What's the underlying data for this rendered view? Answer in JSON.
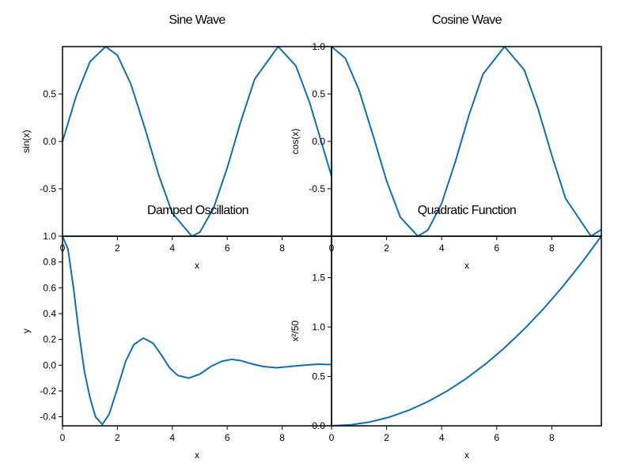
{
  "chart_data": [
    {
      "type": "line",
      "title": "Sine Wave",
      "xlabel": "x",
      "ylabel": "sin(x)",
      "xlim": [
        0,
        9.8
      ],
      "ylim": [
        -1,
        1
      ],
      "xticks": [
        0,
        2,
        4,
        6,
        8
      ],
      "yticks": [
        -0.5,
        0.0,
        0.5
      ],
      "xtick_labels": [
        "0",
        "2",
        "4",
        "6",
        "8"
      ],
      "ytick_labels": [
        "-0.5",
        "0.0",
        "0.5"
      ],
      "grid": false,
      "color": "#0f6fb0",
      "series": [
        {
          "x": [
            0,
            0.5,
            1,
            1.5708,
            2,
            2.5,
            3,
            3.5,
            4,
            4.7124,
            5,
            5.5,
            6,
            6.5,
            7,
            7.854,
            8.5,
            9,
            9.5,
            9.8
          ],
          "y": [
            0,
            0.479,
            0.841,
            1.0,
            0.909,
            0.598,
            0.141,
            -0.351,
            -0.757,
            -1.0,
            -0.959,
            -0.706,
            -0.279,
            0.215,
            0.657,
            1.0,
            0.798,
            0.412,
            -0.075,
            -0.366
          ]
        }
      ]
    },
    {
      "type": "line",
      "title": "Cosine Wave",
      "xlabel": "x",
      "ylabel": "cos(x)",
      "xlim": [
        0,
        9.8
      ],
      "ylim": [
        -1,
        1
      ],
      "xticks": [
        0,
        2,
        4,
        6,
        8
      ],
      "yticks": [
        -0.5,
        0.0,
        0.5,
        1.0
      ],
      "xtick_labels": [
        "0",
        "2",
        "4",
        "6",
        "8"
      ],
      "ytick_labels": [
        "-0.5",
        "0.0",
        "0.5",
        "1.0"
      ],
      "grid": false,
      "color": "#0f6fb0",
      "series": [
        {
          "x": [
            0,
            0.5,
            1,
            1.5,
            2,
            2.5,
            3.1416,
            3.5,
            4,
            4.5,
            5,
            5.5,
            6.2832,
            7,
            7.5,
            8,
            8.5,
            9.4248,
            9.8
          ],
          "y": [
            1.0,
            0.878,
            0.54,
            0.071,
            -0.416,
            -0.801,
            -1.0,
            -0.936,
            -0.654,
            -0.211,
            0.284,
            0.709,
            1.0,
            0.754,
            0.347,
            -0.146,
            -0.602,
            -1.0,
            -0.93
          ]
        }
      ]
    },
    {
      "type": "line",
      "title": "Damped Oscillation",
      "xlabel": "x",
      "ylabel": "y",
      "xlim": [
        0,
        9.8
      ],
      "ylim": [
        -0.47,
        1.0
      ],
      "xticks": [
        0,
        2,
        4,
        6,
        8
      ],
      "yticks": [
        -0.4,
        -0.2,
        0.0,
        0.2,
        0.4,
        0.6,
        0.8,
        1.0
      ],
      "xtick_labels": [
        "0",
        "2",
        "4",
        "6",
        "8"
      ],
      "ytick_labels": [
        "-0.4",
        "-0.2",
        "0.0",
        "0.2",
        "0.4",
        "0.6",
        "0.8",
        "1.0"
      ],
      "grid": false,
      "color": "#0f6fb0",
      "series": [
        {
          "x": [
            0,
            0.2,
            0.4,
            0.6,
            0.8,
            1.0,
            1.2,
            1.45,
            1.7,
            2.0,
            2.3,
            2.6,
            2.95,
            3.3,
            3.6,
            3.9,
            4.2,
            4.6,
            5.0,
            5.4,
            5.8,
            6.15,
            6.5,
            6.9,
            7.3,
            7.8,
            8.3,
            8.8,
            9.3,
            9.8
          ],
          "y": [
            1.0,
            0.9,
            0.6,
            0.25,
            -0.05,
            -0.25,
            -0.4,
            -0.46,
            -0.38,
            -0.18,
            0.03,
            0.16,
            0.21,
            0.17,
            0.08,
            -0.02,
            -0.08,
            -0.1,
            -0.07,
            -0.01,
            0.03,
            0.045,
            0.035,
            0.01,
            -0.01,
            -0.02,
            -0.01,
            0.0,
            0.008,
            0.005
          ]
        }
      ]
    },
    {
      "type": "line",
      "title": "Quadratic Function",
      "xlabel": "x",
      "ylabel": "x²/50",
      "xlim": [
        0,
        9.8
      ],
      "ylim": [
        0,
        1.92
      ],
      "xticks": [
        0,
        2,
        4,
        6,
        8
      ],
      "yticks": [
        0.0,
        0.5,
        1.0,
        1.5
      ],
      "xtick_labels": [
        "0",
        "2",
        "4",
        "6",
        "8"
      ],
      "ytick_labels": [
        "0.0",
        "0.5",
        "1.0",
        "1.5"
      ],
      "grid": false,
      "color": "#0f6fb0",
      "series": [
        {
          "x": [
            0,
            0.7,
            1.4,
            2.1,
            2.8,
            3.5,
            4.2,
            4.9,
            5.6,
            6.3,
            7.0,
            7.7,
            8.4,
            9.1,
            9.8
          ],
          "y": [
            0,
            0.0098,
            0.0392,
            0.0882,
            0.1568,
            0.245,
            0.3528,
            0.4802,
            0.6272,
            0.7938,
            0.98,
            1.1858,
            1.4112,
            1.6562,
            1.9208
          ]
        }
      ]
    }
  ]
}
